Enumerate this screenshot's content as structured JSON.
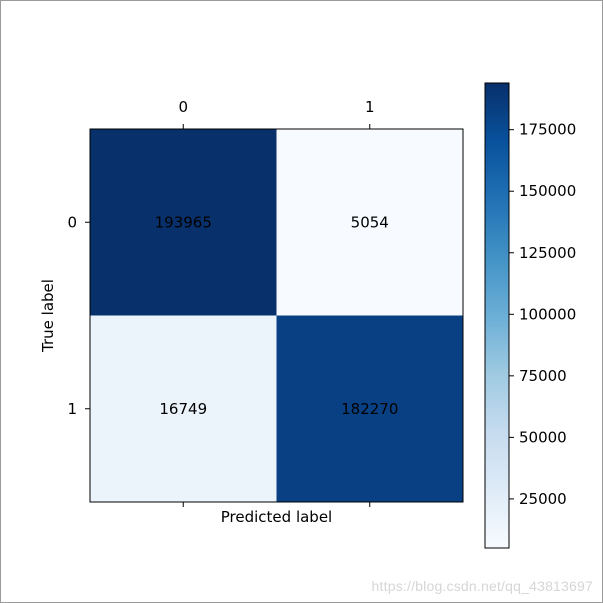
{
  "chart_data": {
    "type": "heatmap",
    "title": "",
    "xlabel": "Predicted label",
    "ylabel": "True label",
    "x_categories": [
      "0",
      "1"
    ],
    "y_categories": [
      "0",
      "1"
    ],
    "values": [
      [
        193965,
        5054
      ],
      [
        16749,
        182270
      ]
    ],
    "colormap": "Blues",
    "color_range": [
      5054,
      193965
    ],
    "colorbar": {
      "ticks": [
        25000,
        50000,
        75000,
        100000,
        125000,
        150000,
        175000
      ],
      "tick_labels": [
        "25000",
        "50000",
        "75000",
        "100000",
        "125000",
        "150000",
        "175000"
      ],
      "position": "right"
    },
    "x_ticks_position": "top",
    "grid": false
  },
  "watermark": "https://blog.csdn.net/qq_43813697"
}
